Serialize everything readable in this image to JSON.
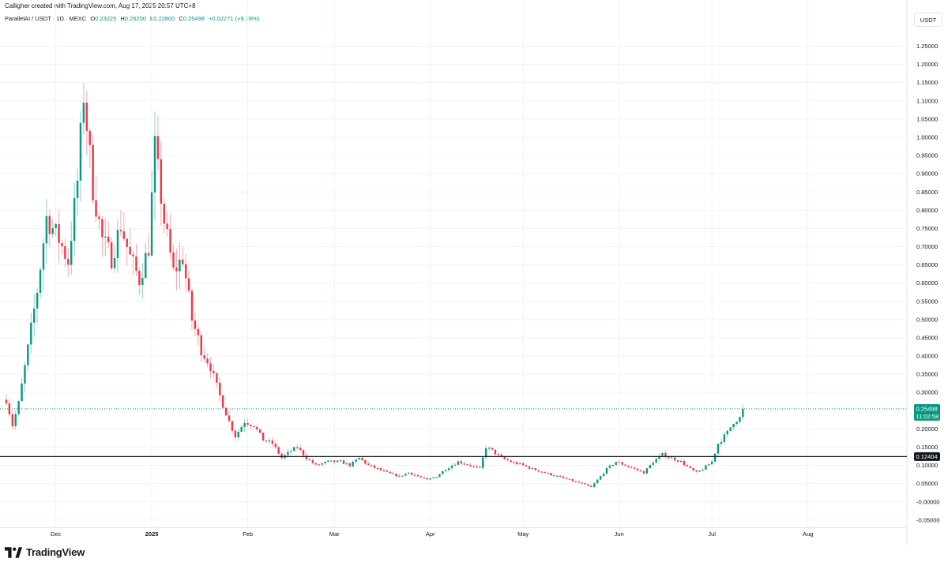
{
  "header": {
    "credit": "Calligher created with TradingView.com, Aug 17, 2025 20:57 UTC+8"
  },
  "legend": {
    "symbol": "ParallelAI / USDT · 1D · MEXC",
    "open_label": "O",
    "open": "0.23225",
    "high_label": "H",
    "high": "0.26200",
    "low_label": "L",
    "low": "0.22800",
    "close_label": "C",
    "close": "0.25498",
    "change": "+0.02271 (+9.78%)"
  },
  "currency": "USDT",
  "footer": {
    "brand": "TradingView"
  },
  "colors": {
    "up": "#089981",
    "down": "#f23645",
    "grid": "#f0f3fa",
    "hline": "#131722",
    "last_line": "#089981"
  },
  "chart_data": {
    "type": "candlestick",
    "title": "ParallelAI / USDT · 1D · MEXC",
    "xlabel": "",
    "ylabel": "",
    "ylim": [
      -0.07,
      1.29
    ],
    "y_ticks": [
      "1.25000",
      "1.20000",
      "1.15000",
      "1.10000",
      "1.05000",
      "1.00000",
      "0.95000",
      "0.90000",
      "0.85000",
      "0.80000",
      "0.75000",
      "0.70000",
      "0.65000",
      "0.60000",
      "0.55000",
      "0.50000",
      "0.45000",
      "0.40000",
      "0.35000",
      "0.30000",
      "0.25000",
      "0.20000",
      "0.15000",
      "0.10000",
      "0.05000",
      "-0.00000",
      "-0.05000"
    ],
    "x_ticks": [
      {
        "label": "Dec",
        "day": 0
      },
      {
        "label": "2025",
        "day": 31,
        "bold": true
      },
      {
        "label": "Feb",
        "day": 62
      },
      {
        "label": "Mar",
        "day": 90
      },
      {
        "label": "Apr",
        "day": 121
      },
      {
        "label": "May",
        "day": 151
      },
      {
        "label": "Jun",
        "day": 182
      },
      {
        "label": "Jul",
        "day": 212
      },
      {
        "label": "Aug",
        "day": 243
      }
    ],
    "x_range_days": [
      -16.5,
      275
    ],
    "horizontal_line": {
      "value": 0.12404,
      "label": "0.12404"
    },
    "last_price": {
      "value": 0.25498,
      "label": "0.25498",
      "countdown": "11:02:58"
    },
    "anchors": [
      [
        -16,
        0.28
      ],
      [
        -14,
        0.21
      ],
      [
        -12,
        0.27
      ],
      [
        -9,
        0.42
      ],
      [
        -6,
        0.58
      ],
      [
        -3,
        0.78
      ],
      [
        1,
        0.72
      ],
      [
        4,
        0.66
      ],
      [
        7,
        0.88
      ],
      [
        9,
        1.12
      ],
      [
        12,
        0.86
      ],
      [
        15,
        0.72
      ],
      [
        18,
        0.67
      ],
      [
        21,
        0.76
      ],
      [
        24,
        0.67
      ],
      [
        27,
        0.61
      ],
      [
        30,
        0.7
      ],
      [
        32,
        0.97
      ],
      [
        35,
        0.77
      ],
      [
        38,
        0.63
      ],
      [
        41,
        0.67
      ],
      [
        44,
        0.5
      ],
      [
        47,
        0.42
      ],
      [
        50,
        0.37
      ],
      [
        53,
        0.29
      ],
      [
        56,
        0.22
      ],
      [
        58,
        0.18
      ],
      [
        61,
        0.22
      ],
      [
        64,
        0.21
      ],
      [
        67,
        0.17
      ],
      [
        70,
        0.16
      ],
      [
        73,
        0.12
      ],
      [
        76,
        0.14
      ],
      [
        78,
        0.15
      ],
      [
        81,
        0.12
      ],
      [
        84,
        0.1
      ],
      [
        88,
        0.11
      ],
      [
        92,
        0.11
      ],
      [
        95,
        0.1
      ],
      [
        98,
        0.12
      ],
      [
        101,
        0.1
      ],
      [
        104,
        0.09
      ],
      [
        107,
        0.08
      ],
      [
        111,
        0.07
      ],
      [
        114,
        0.08
      ],
      [
        117,
        0.07
      ],
      [
        120,
        0.06
      ],
      [
        123,
        0.07
      ],
      [
        126,
        0.09
      ],
      [
        130,
        0.11
      ],
      [
        134,
        0.1
      ],
      [
        137,
        0.09
      ],
      [
        139,
        0.15
      ],
      [
        141,
        0.14
      ],
      [
        144,
        0.12
      ],
      [
        147,
        0.11
      ],
      [
        151,
        0.1
      ],
      [
        154,
        0.09
      ],
      [
        158,
        0.08
      ],
      [
        162,
        0.07
      ],
      [
        166,
        0.06
      ],
      [
        170,
        0.05
      ],
      [
        173,
        0.04
      ],
      [
        175,
        0.06
      ],
      [
        178,
        0.09
      ],
      [
        181,
        0.11
      ],
      [
        184,
        0.1
      ],
      [
        187,
        0.09
      ],
      [
        190,
        0.08
      ],
      [
        193,
        0.11
      ],
      [
        196,
        0.13
      ],
      [
        199,
        0.12
      ],
      [
        202,
        0.11
      ],
      [
        205,
        0.09
      ],
      [
        207,
        0.08
      ],
      [
        209,
        0.09
      ],
      [
        212,
        0.11
      ],
      [
        214,
        0.16
      ],
      [
        217,
        0.19
      ],
      [
        219,
        0.22
      ],
      [
        221,
        0.23
      ],
      [
        222,
        0.255
      ]
    ]
  }
}
